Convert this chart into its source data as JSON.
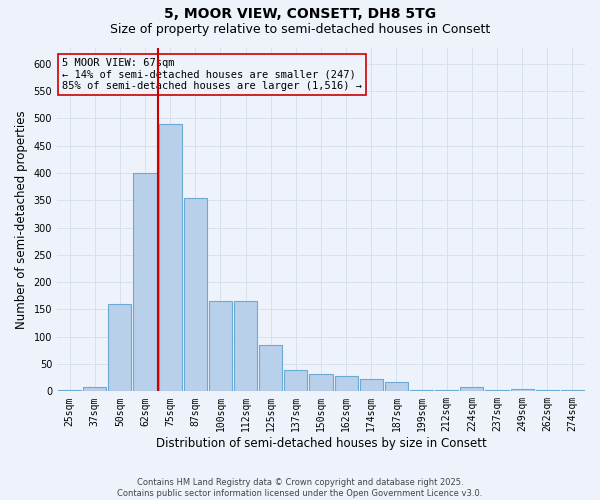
{
  "title": "5, MOOR VIEW, CONSETT, DH8 5TG",
  "subtitle": "Size of property relative to semi-detached houses in Consett",
  "xlabel": "Distribution of semi-detached houses by size in Consett",
  "ylabel": "Number of semi-detached properties",
  "footnote": "Contains HM Land Registry data © Crown copyright and database right 2025.\nContains public sector information licensed under the Open Government Licence v3.0.",
  "categories": [
    "25sqm",
    "37sqm",
    "50sqm",
    "62sqm",
    "75sqm",
    "87sqm",
    "100sqm",
    "112sqm",
    "125sqm",
    "137sqm",
    "150sqm",
    "162sqm",
    "174sqm",
    "187sqm",
    "199sqm",
    "212sqm",
    "224sqm",
    "237sqm",
    "249sqm",
    "262sqm",
    "274sqm"
  ],
  "bar_values": [
    2,
    8,
    160,
    400,
    490,
    355,
    165,
    165,
    85,
    40,
    32,
    28,
    22,
    18,
    2,
    2,
    8,
    2,
    5,
    2,
    2
  ],
  "bar_color": "#b8d0ea",
  "bar_edge_color": "#6aaad4",
  "property_label": "5 MOOR VIEW: 67sqm",
  "annotation_line1": "← 14% of semi-detached houses are smaller (247)",
  "annotation_line2": "85% of semi-detached houses are larger (1,516) →",
  "vline_color": "#cc0000",
  "annotation_box_edge": "#cc0000",
  "vline_x_index": 3.5,
  "ylim": [
    0,
    630
  ],
  "yticks": [
    0,
    50,
    100,
    150,
    200,
    250,
    300,
    350,
    400,
    450,
    500,
    550,
    600
  ],
  "background_color": "#eef2fa",
  "grid_color": "#d8e0f0",
  "title_fontsize": 10,
  "subtitle_fontsize": 9,
  "axis_fontsize": 8.5,
  "tick_fontsize": 7,
  "annotation_fontsize": 7.5
}
